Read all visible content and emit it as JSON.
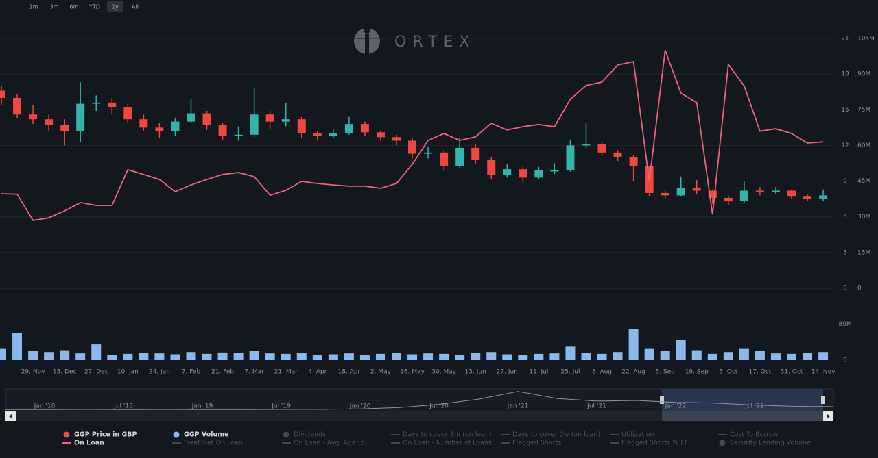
{
  "logo": "ORTEX",
  "range_buttons": [
    "1m",
    "3m",
    "6m",
    "YTD",
    "1y",
    "All"
  ],
  "active_range_index": 4,
  "chart_data": [
    {
      "type": "candlestick",
      "categories": [
        null,
        null,
        "29. Nov",
        null,
        "13. Dec",
        null,
        "27. Dec",
        null,
        "10. Jan",
        null,
        "24. Jan",
        null,
        "7. Feb",
        null,
        "21. Feb",
        null,
        "7. Mar",
        null,
        "21. Mar",
        null,
        "4. Apr",
        null,
        "18. Apr",
        null,
        "2. May",
        null,
        "16. May",
        null,
        "30. May",
        null,
        "13. Jun",
        null,
        "27. Jun",
        null,
        "11. Jul",
        null,
        "25. Jul",
        null,
        "8. Aug",
        null,
        "22. Aug",
        null,
        "5. Sep",
        null,
        "19. Sep",
        null,
        "3. Oct",
        null,
        "17. Oct",
        null,
        "31. Oct",
        null,
        "14. Nov"
      ],
      "ylim": [
        0,
        21
      ],
      "yticks": [
        0,
        3,
        6,
        9,
        12,
        15,
        18,
        21
      ],
      "y2lim": [
        0,
        105000000
      ],
      "y2ticks": [
        0,
        {
          "value": 15000000,
          "label": "15M"
        },
        {
          "value": 30000000,
          "label": "30M"
        },
        {
          "value": 45000000,
          "label": "45M"
        },
        {
          "value": 60000000,
          "label": "60M"
        },
        {
          "value": 75000000,
          "label": "75M"
        },
        {
          "value": 90000000,
          "label": "90M"
        },
        {
          "value": 105000000,
          "label": "105M"
        }
      ],
      "grid": true,
      "series": [
        {
          "name": "GGP Price in GBP",
          "type": "candlestick",
          "marker": "dot",
          "color": "#ef4a45",
          "up_color": "#33b3aa",
          "down_color": "#f0483e",
          "open": [
            16.6,
            16.0,
            14.6,
            14.2,
            13.7,
            13.2,
            15.5,
            15.6,
            15.2,
            14.2,
            13.5,
            13.2,
            14.0,
            14.7,
            13.7,
            12.8,
            12.9,
            14.6,
            14.0,
            14.2,
            13.0,
            12.8,
            13.0,
            13.8,
            13.1,
            12.7,
            12.4,
            11.3,
            11.4,
            10.3,
            11.8,
            10.8,
            9.5,
            10.0,
            9.3,
            9.9,
            9.9,
            12.0,
            12.1,
            11.4,
            11.0,
            10.3,
            8.0,
            7.8,
            8.4,
            8.2,
            7.6,
            7.3,
            8.2,
            8.1,
            8.2,
            7.7,
            7.5
          ],
          "high": [
            17.0,
            16.3,
            15.4,
            14.6,
            14.2,
            17.3,
            16.2,
            16.0,
            15.5,
            14.6,
            13.9,
            14.3,
            15.9,
            14.9,
            13.9,
            13.6,
            16.8,
            14.9,
            15.6,
            14.4,
            13.2,
            13.4,
            14.4,
            14.0,
            13.2,
            12.9,
            12.6,
            11.9,
            11.6,
            12.6,
            12.1,
            11.0,
            10.4,
            10.2,
            10.2,
            10.5,
            12.5,
            13.9,
            12.3,
            11.6,
            11.2,
            10.3,
            8.2,
            9.4,
            9.1,
            8.3,
            7.8,
            9.0,
            8.5,
            8.5,
            8.3,
            7.9,
            8.3
          ],
          "low": [
            15.4,
            14.3,
            13.8,
            13.2,
            12.0,
            12.3,
            14.9,
            14.6,
            13.9,
            13.2,
            12.6,
            12.8,
            13.9,
            13.3,
            12.5,
            12.4,
            12.7,
            13.4,
            13.6,
            12.6,
            12.4,
            12.6,
            12.9,
            12.8,
            12.4,
            12.0,
            10.9,
            10.9,
            9.9,
            10.1,
            10.4,
            9.2,
            9.3,
            8.9,
            9.2,
            9.6,
            9.8,
            11.8,
            11.1,
            10.7,
            9.0,
            7.7,
            7.5,
            7.7,
            7.9,
            7.1,
            7.0,
            7.2,
            7.8,
            7.9,
            7.5,
            7.3,
            7.3
          ],
          "close": [
            16.0,
            14.6,
            14.2,
            13.7,
            13.2,
            15.5,
            15.6,
            15.2,
            14.2,
            13.5,
            13.2,
            14.0,
            14.7,
            13.7,
            12.8,
            12.9,
            14.6,
            14.0,
            14.2,
            13.0,
            12.8,
            13.0,
            13.8,
            13.1,
            12.7,
            12.4,
            11.3,
            11.4,
            10.3,
            11.8,
            10.8,
            9.5,
            10.0,
            9.3,
            9.9,
            9.9,
            12.0,
            12.1,
            11.4,
            11.0,
            10.3,
            8.0,
            7.8,
            8.4,
            8.2,
            7.6,
            7.3,
            8.2,
            8.1,
            8.2,
            7.7,
            7.5,
            7.8
          ]
        },
        {
          "name": "On Loan",
          "type": "line",
          "marker": "line",
          "color": "#f0637f",
          "axis": "y2",
          "values": [
            39700000,
            39500000,
            28500000,
            29600000,
            32500000,
            36000000,
            34800000,
            34800000,
            49800000,
            47800000,
            45700000,
            40600000,
            43400000,
            45700000,
            47800000,
            48600000,
            46900000,
            39100000,
            41100000,
            44900000,
            44000000,
            43400000,
            42900000,
            42900000,
            42000000,
            44000000,
            52100000,
            62100000,
            65000000,
            62100000,
            63600000,
            69300000,
            66500000,
            67900000,
            68800000,
            67900000,
            79400000,
            85200000,
            86600000,
            93800000,
            95200000,
            45000000,
            100000000,
            82000000,
            78000000,
            31000000,
            94000000,
            85000000,
            66000000,
            67000000,
            65000000,
            61000000,
            61500000
          ]
        }
      ]
    },
    {
      "type": "bar",
      "ylim": [
        0,
        113000000
      ],
      "yticks": [
        0,
        {
          "value": 80000000,
          "label": "80M"
        }
      ],
      "grid": false,
      "series": [
        {
          "name": "GGP Volume",
          "marker": "dot",
          "color": "#8cb8ec",
          "values": [
            25000000,
            60000000,
            20000000,
            18000000,
            22000000,
            15000000,
            35000000,
            12000000,
            14000000,
            16000000,
            15000000,
            13000000,
            18000000,
            14000000,
            17000000,
            16000000,
            20000000,
            15000000,
            14000000,
            16000000,
            12000000,
            13000000,
            15000000,
            12000000,
            14000000,
            16000000,
            13000000,
            15000000,
            14000000,
            12000000,
            16000000,
            18000000,
            13000000,
            12000000,
            14000000,
            15000000,
            30000000,
            16000000,
            14000000,
            18000000,
            70000000,
            25000000,
            20000000,
            45000000,
            22000000,
            14000000,
            18000000,
            25000000,
            20000000,
            15000000,
            14000000,
            16000000,
            18000000
          ]
        }
      ]
    },
    {
      "type": "line",
      "categories": [
        null,
        "Jan '18",
        null,
        "Jul '18",
        null,
        "Jan '19",
        null,
        "Jul '19",
        null,
        "Jan '20",
        null,
        "Jul '20",
        null,
        "Jan '21",
        null,
        "Jul '21",
        null,
        "Jan '22",
        null,
        "Jul '22",
        null,
        null
      ],
      "ylim": [
        0,
        35
      ],
      "color": "#8f959b",
      "values": [
        3,
        3,
        3.2,
        3,
        3.1,
        3,
        3,
        3.2,
        3.3,
        4,
        6,
        11,
        19,
        31,
        20,
        16,
        17,
        14,
        13,
        10,
        8,
        7.5
      ]
    }
  ],
  "legend_extra": [
    {
      "name": "FreeFloat On Loan",
      "marker": "line"
    },
    {
      "name": "Dividends",
      "marker": "dot"
    },
    {
      "name": "On Loan - Avg. Age (d)",
      "marker": "line"
    },
    {
      "name": "Days to cover 3m (on loan)",
      "marker": "line"
    },
    {
      "name": "On Loan - Number of Loans",
      "marker": "line"
    },
    {
      "name": "Days to cover 2w (on loan)",
      "marker": "line"
    },
    {
      "name": "Flagged Shorts",
      "marker": "line"
    },
    {
      "name": "Utilization",
      "marker": "line"
    },
    {
      "name": "Flagged Shorts % FF",
      "marker": "line"
    },
    {
      "name": "Cost To Borrow",
      "marker": "line"
    },
    {
      "name": "Security Lending Volume",
      "marker": "dot"
    }
  ]
}
